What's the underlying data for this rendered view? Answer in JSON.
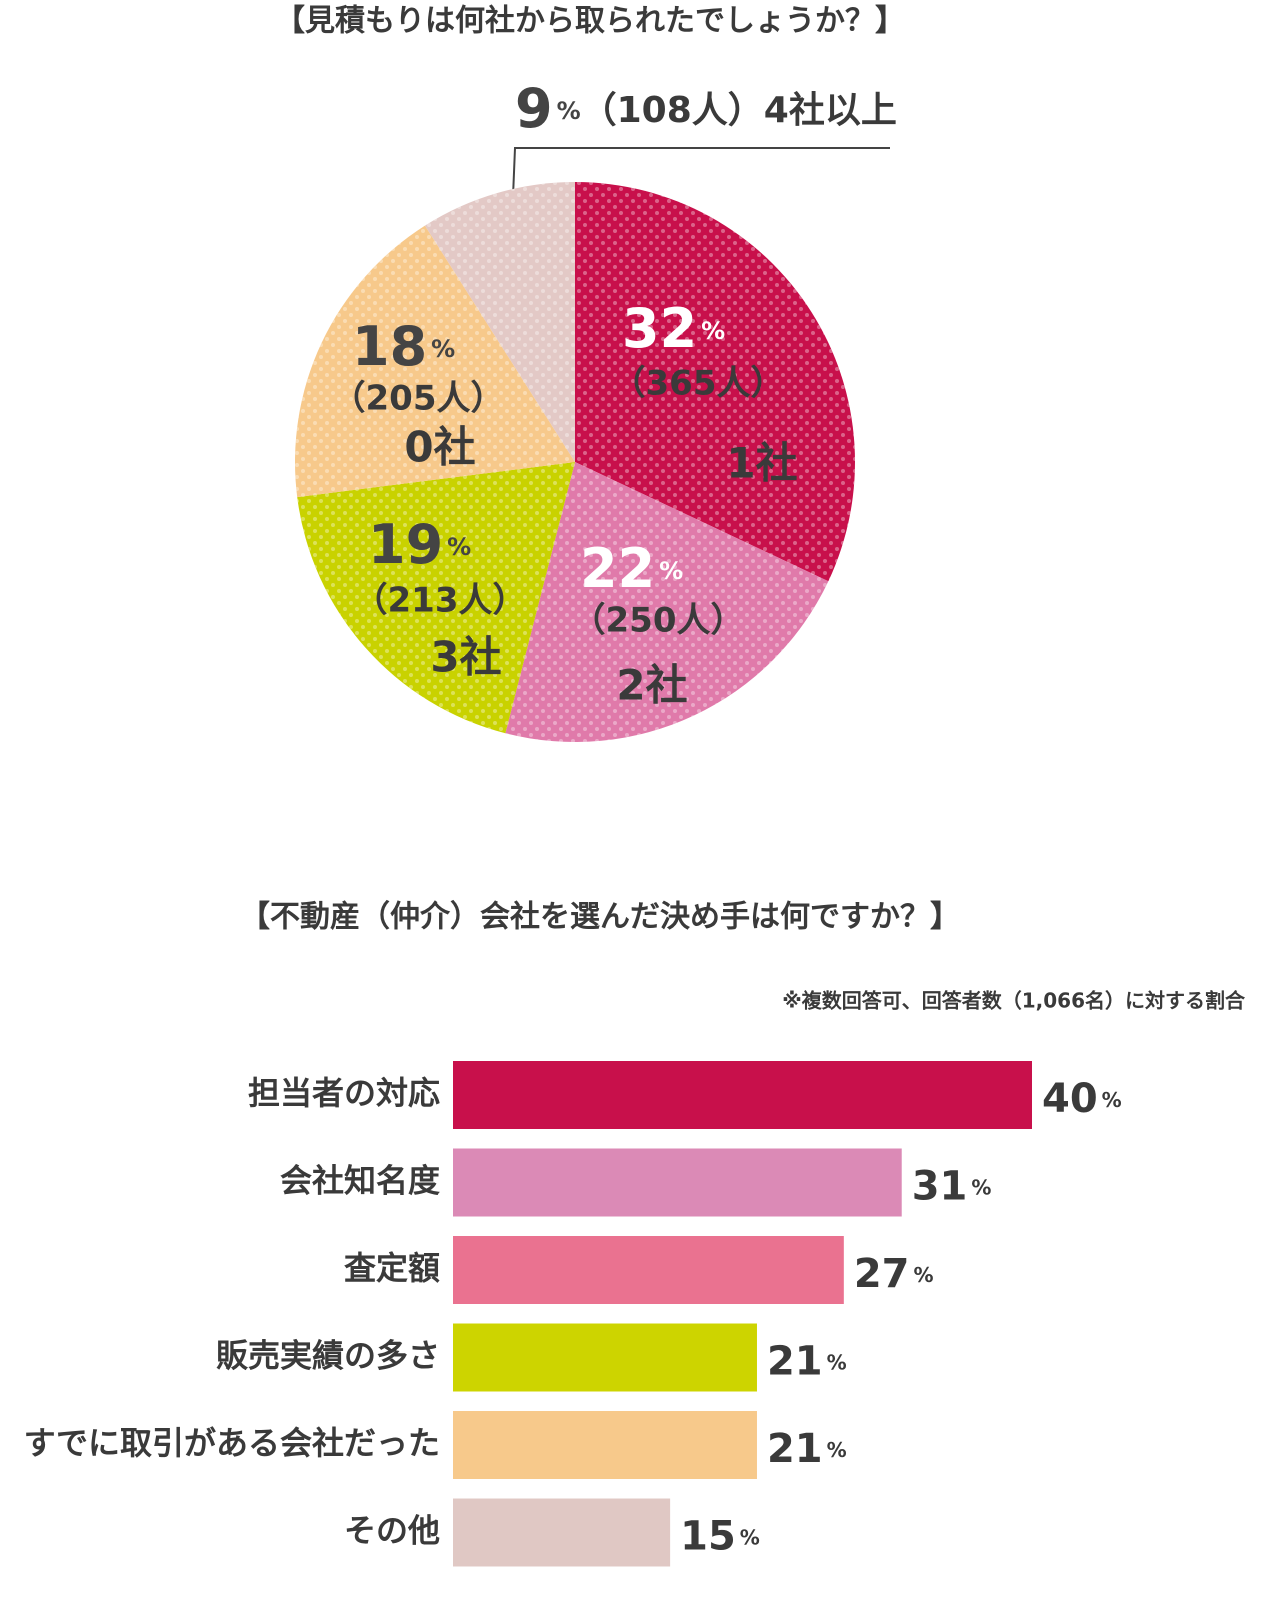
{
  "chart_data": [
    {
      "type": "pie",
      "title": "【見積もりは何社から取られたでしょうか？】",
      "categories": [
        "1社",
        "2社",
        "3社",
        "0社",
        "4社以上"
      ],
      "values": [
        32,
        22,
        19,
        18,
        9
      ],
      "value_labels": [
        "32%",
        "22%",
        "19%",
        "18%",
        "9%"
      ],
      "counts": [
        365,
        250,
        213,
        205,
        108
      ],
      "count_labels": [
        "（365人）",
        "（250人）",
        "（213人）",
        "（205人）",
        "（108人）"
      ],
      "colors": [
        "#c8104b",
        "#e07aaa",
        "#c9d200",
        "#f7c98b",
        "#e3c9c6"
      ]
    },
    {
      "type": "hbar",
      "title": "【不動産（仲介）会社を選んだ決め手は何ですか？】",
      "note": "※複数回答可、回答者数（1,066名）に対する割合",
      "categories": [
        "担当者の対応",
        "会社知名度",
        "査定額",
        "販売実績の多さ",
        "すでに取引がある会社だった",
        "その他"
      ],
      "values": [
        40,
        31,
        27,
        21,
        21,
        15
      ],
      "value_labels": [
        "40%",
        "31%",
        "27%",
        "21%",
        "21%",
        "15%"
      ],
      "colors": [
        "#c8104b",
        "#db8ab6",
        "#ea7290",
        "#cdd400",
        "#f7c98b",
        "#e0c8c4"
      ]
    }
  ]
}
